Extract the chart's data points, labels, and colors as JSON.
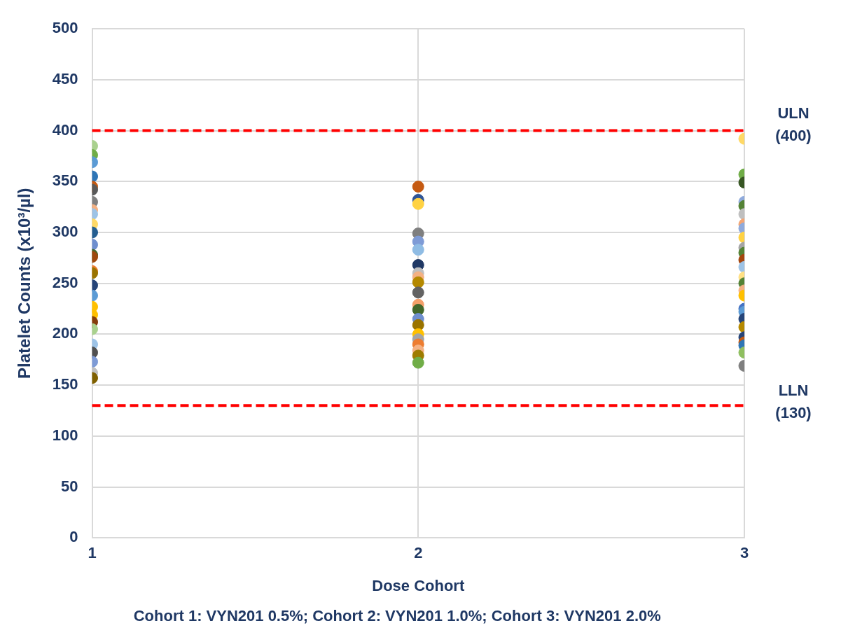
{
  "chart_data": {
    "type": "scatter",
    "xlabel": "Dose Cohort",
    "ylabel": "Platelet Counts (x10³/µl)",
    "annotations": [
      "Cohort 1: VYN201 0.5%; Cohort 2: VYN201 1.0%; Cohort 3: VYN201 2.0%"
    ],
    "xlim": [
      1,
      3
    ],
    "xticks": [
      1,
      2,
      3
    ],
    "ylim": [
      0,
      500
    ],
    "yticks": [
      0,
      50,
      100,
      150,
      200,
      250,
      300,
      350,
      400,
      450,
      500
    ],
    "grid": true,
    "legend": false,
    "marker": "circle",
    "ref_lines": [
      {
        "axis": "y",
        "value": 400,
        "label": "ULN (400)",
        "color": "#ff0000",
        "line_style": "dashed"
      },
      {
        "axis": "y",
        "value": 130,
        "label": "LLN (130)",
        "color": "#ff0000",
        "line_style": "dashed"
      }
    ],
    "series": [
      {
        "x": [
          1,
          1,
          1,
          1,
          1,
          1,
          1,
          1,
          1,
          1,
          1,
          1,
          1,
          1,
          1,
          1,
          1,
          1,
          1,
          1,
          1,
          1,
          1,
          1,
          1,
          1,
          1,
          2,
          2,
          2,
          2,
          2,
          2,
          2,
          2,
          2,
          2,
          2,
          2,
          2,
          2,
          2,
          2,
          2,
          2,
          2,
          2,
          2,
          3,
          3,
          3,
          3,
          3,
          3,
          3,
          3,
          3,
          3,
          3,
          3,
          3,
          3,
          3,
          3,
          3,
          3,
          3,
          3,
          3,
          3,
          3,
          3,
          3,
          3
        ],
        "values": [
          385,
          376,
          369,
          355,
          345,
          342,
          330,
          322,
          318,
          308,
          300,
          288,
          278,
          276,
          262,
          260,
          248,
          238,
          227,
          219,
          212,
          205,
          190,
          182,
          173,
          162,
          157,
          345,
          332,
          328,
          299,
          291,
          283,
          268,
          260,
          256,
          251,
          241,
          229,
          224,
          215,
          209,
          200,
          195,
          190,
          184,
          179,
          172,
          392,
          357,
          349,
          330,
          326,
          318,
          308,
          304,
          295,
          285,
          280,
          273,
          266,
          256,
          250,
          243,
          238,
          225,
          222,
          215,
          207,
          197,
          192,
          189,
          182,
          169
        ],
        "colors": [
          "#a9d18e",
          "#70ad47",
          "#5b9bd5",
          "#2e75b6",
          "#c55a11",
          "#595959",
          "#7f7f7f",
          "#f4b183",
          "#9dc3e6",
          "#ffd966",
          "#255e91",
          "#6f8fcf",
          "#43682b",
          "#9e480e",
          "#ed7d31",
          "#997300",
          "#264478",
          "#5b9bd5",
          "#ffc000",
          "#ffc000",
          "#843c0c",
          "#a9d18e",
          "#9dc3e6",
          "#505050",
          "#7e9bd6",
          "#bfbfbf",
          "#7f6000",
          "#c55a11",
          "#2f5597",
          "#ffd243",
          "#7f7f7f",
          "#7e9bd6",
          "#8fbce4",
          "#203864",
          "#bfbfbf",
          "#f4b183",
          "#b58900",
          "#636363",
          "#f4a06a",
          "#43682b",
          "#6f8fcf",
          "#997300",
          "#ffc000",
          "#a5a5a5",
          "#ed7d31",
          "#f4b183",
          "#9e7c00",
          "#70ad47",
          "#ffd966",
          "#70ad47",
          "#375623",
          "#8faadc",
          "#548235",
          "#bfbfbf",
          "#f4a572",
          "#8faadc",
          "#ffd243",
          "#a5a5a5",
          "#548235",
          "#a5460e",
          "#9dc3e6",
          "#ffe084",
          "#548235",
          "#f4b183",
          "#ffc000",
          "#4472c4",
          "#5b9bd5",
          "#264478",
          "#b58900",
          "#264478",
          "#c55a11",
          "#2e75b6",
          "#8fbf60",
          "#7f7f7f"
        ]
      }
    ]
  }
}
